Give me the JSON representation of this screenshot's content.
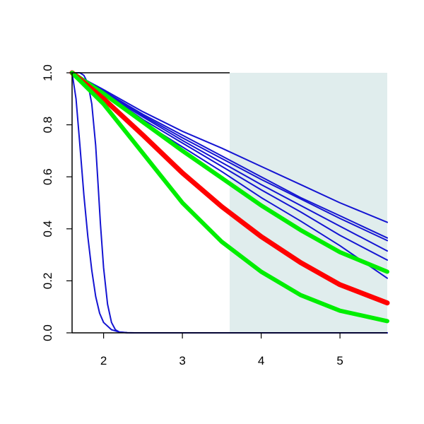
{
  "colors": {
    "background": "#ffffff",
    "shade": "#e0eded",
    "blue": "#1414d2",
    "red": "#ff0000",
    "green": "#00ee00",
    "axis": "#000000"
  },
  "chart_data": {
    "type": "line",
    "title": "",
    "xlabel": "",
    "ylabel": "",
    "xlim": [
      1.6,
      5.6
    ],
    "ylim": [
      0,
      1
    ],
    "grid": false,
    "legend": "none",
    "x_ticks": [
      {
        "value": 2,
        "label": "2"
      },
      {
        "value": 3,
        "label": "3"
      },
      {
        "value": 4,
        "label": "4"
      },
      {
        "value": 5,
        "label": "5"
      }
    ],
    "y_ticks": [
      {
        "value": 0.0,
        "label": "0.0"
      },
      {
        "value": 0.2,
        "label": "0.2"
      },
      {
        "value": 0.4,
        "label": "0.4"
      },
      {
        "value": 0.6,
        "label": "0.6"
      },
      {
        "value": 0.8,
        "label": "0.8"
      },
      {
        "value": 1.0,
        "label": "1.0"
      }
    ],
    "shaded_region": {
      "x_from": 3.6,
      "x_to": 5.6,
      "color": "#e0eded"
    },
    "series": [
      {
        "color": "blue",
        "width": 2,
        "x": [
          1.6,
          1.65,
          1.7,
          1.75,
          1.8,
          1.85,
          1.9,
          1.95,
          2.0,
          2.1,
          2.2,
          2.3,
          2.4,
          3.0,
          4.0,
          5.0,
          5.6
        ],
        "y": [
          1.0,
          0.9,
          0.72,
          0.53,
          0.37,
          0.24,
          0.14,
          0.075,
          0.04,
          0.012,
          0.003,
          0.0005,
          0.0,
          0.0,
          0.0,
          0.0,
          0.0
        ]
      },
      {
        "color": "blue",
        "width": 2,
        "x": [
          1.6,
          1.65,
          1.7,
          1.75,
          1.8,
          1.85,
          1.9,
          1.93,
          1.96,
          2.0,
          2.05,
          2.1,
          2.15,
          2.2,
          2.3,
          2.4,
          3.0,
          4.0,
          5.0,
          5.6
        ],
        "y": [
          1.0,
          1.0,
          1.0,
          0.99,
          0.96,
          0.88,
          0.72,
          0.57,
          0.42,
          0.25,
          0.11,
          0.04,
          0.012,
          0.003,
          0.0003,
          0.0,
          0.0,
          0.0,
          0.0,
          0.0
        ]
      },
      {
        "color": "blue",
        "width": 2,
        "x": [
          1.6,
          2.0,
          2.5,
          3.0,
          3.5,
          4.0,
          4.5,
          5.0,
          5.6
        ],
        "y": [
          1.0,
          0.935,
          0.85,
          0.775,
          0.71,
          0.64,
          0.57,
          0.5,
          0.425
        ]
      },
      {
        "color": "blue",
        "width": 2,
        "x": [
          1.6,
          2.0,
          2.5,
          3.0,
          3.5,
          4.0,
          4.5,
          5.0,
          5.6
        ],
        "y": [
          1.0,
          0.93,
          0.84,
          0.76,
          0.68,
          0.6,
          0.52,
          0.45,
          0.365
        ]
      },
      {
        "color": "blue",
        "width": 2,
        "x": [
          1.6,
          2.0,
          2.5,
          3.0,
          3.5,
          4.0,
          4.5,
          5.0,
          5.6
        ],
        "y": [
          1.0,
          0.93,
          0.835,
          0.75,
          0.67,
          0.59,
          0.515,
          0.44,
          0.355
        ]
      },
      {
        "color": "blue",
        "width": 2,
        "x": [
          1.6,
          2.0,
          2.5,
          3.0,
          3.5,
          4.0,
          4.5,
          5.0,
          5.6
        ],
        "y": [
          1.0,
          0.925,
          0.83,
          0.74,
          0.655,
          0.57,
          0.49,
          0.41,
          0.315
        ]
      },
      {
        "color": "blue",
        "width": 2,
        "x": [
          1.6,
          2.0,
          2.5,
          3.0,
          3.5,
          4.0,
          4.5,
          5.0,
          5.6
        ],
        "y": [
          1.0,
          0.925,
          0.82,
          0.73,
          0.64,
          0.55,
          0.465,
          0.375,
          0.28
        ]
      },
      {
        "color": "blue",
        "width": 2,
        "x": [
          1.6,
          2.0,
          2.5,
          3.0,
          3.5,
          4.0,
          4.5,
          5.0,
          5.6
        ],
        "y": [
          1.0,
          0.92,
          0.81,
          0.715,
          0.62,
          0.52,
          0.43,
          0.335,
          0.21
        ]
      },
      {
        "color": "green",
        "width": 6,
        "x": [
          1.6,
          2.0,
          2.5,
          3.0,
          3.5,
          4.0,
          4.5,
          5.0,
          5.6
        ],
        "y": [
          1.0,
          0.92,
          0.81,
          0.7,
          0.595,
          0.49,
          0.395,
          0.31,
          0.235
        ]
      },
      {
        "color": "red",
        "width": 7,
        "x": [
          1.6,
          2.0,
          2.5,
          3.0,
          3.5,
          4.0,
          4.5,
          5.0,
          5.6
        ],
        "y": [
          1.0,
          0.9,
          0.76,
          0.615,
          0.485,
          0.37,
          0.27,
          0.185,
          0.115
        ]
      },
      {
        "color": "green",
        "width": 6,
        "x": [
          1.6,
          2.0,
          2.5,
          3.0,
          3.5,
          4.0,
          4.5,
          5.0,
          5.6
        ],
        "y": [
          1.0,
          0.88,
          0.69,
          0.5,
          0.35,
          0.235,
          0.145,
          0.085,
          0.045
        ]
      }
    ]
  }
}
